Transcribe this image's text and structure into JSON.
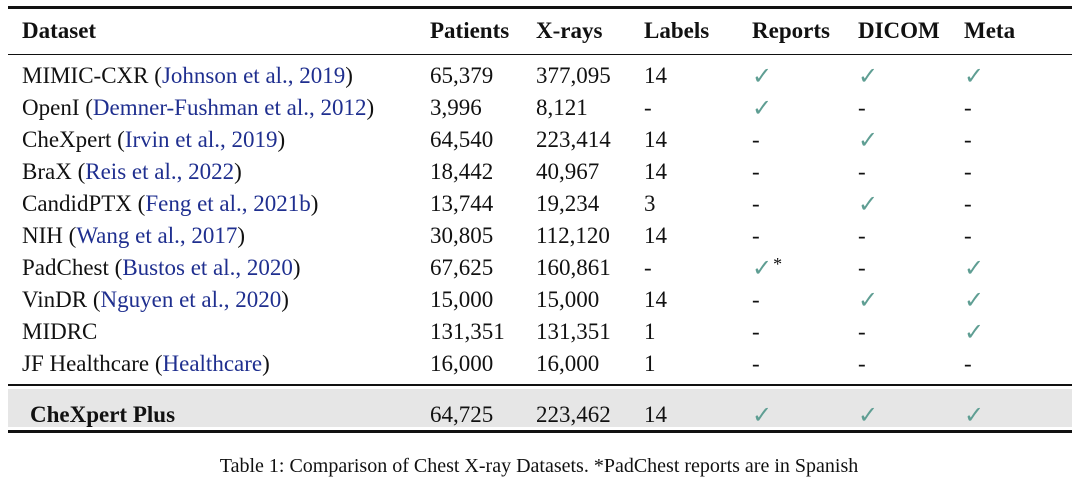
{
  "table": {
    "headers": [
      "Dataset",
      "Patients",
      "X-rays",
      "Labels",
      "Reports",
      "DICOM",
      "Meta"
    ],
    "rows": [
      {
        "name": "MIMIC-CXR",
        "cite": "Johnson et al., 2019",
        "patients": "65,379",
        "xrays": "377,095",
        "labels": "14",
        "reports": "✓",
        "reports_note": "",
        "dicom": "✓",
        "meta": "✓"
      },
      {
        "name": "OpenI",
        "cite": "Demner-Fushman et al., 2012",
        "patients": "3,996",
        "xrays": "8,121",
        "labels": "-",
        "reports": "✓",
        "reports_note": "",
        "dicom": "-",
        "meta": "-"
      },
      {
        "name": "CheXpert",
        "cite": "Irvin et al., 2019",
        "patients": "64,540",
        "xrays": "223,414",
        "labels": "14",
        "reports": "-",
        "reports_note": "",
        "dicom": "✓",
        "meta": "-"
      },
      {
        "name": "BraX",
        "cite": "Reis et al., 2022",
        "patients": "18,442",
        "xrays": "40,967",
        "labels": "14",
        "reports": "-",
        "reports_note": "",
        "dicom": "-",
        "meta": "-"
      },
      {
        "name": "CandidPTX",
        "cite": "Feng et al., 2021b",
        "patients": "13,744",
        "xrays": "19,234",
        "labels": "3",
        "reports": "-",
        "reports_note": "",
        "dicom": "✓",
        "meta": "-"
      },
      {
        "name": "NIH",
        "cite": "Wang et al., 2017",
        "patients": "30,805",
        "xrays": "112,120",
        "labels": "14",
        "reports": "-",
        "reports_note": "",
        "dicom": "-",
        "meta": "-"
      },
      {
        "name": "PadChest",
        "cite": "Bustos et al., 2020",
        "patients": "67,625",
        "xrays": "160,861",
        "labels": "-",
        "reports": "✓",
        "reports_note": "*",
        "dicom": "-",
        "meta": "✓"
      },
      {
        "name": "VinDR",
        "cite": "Nguyen et al., 2020",
        "patients": "15,000",
        "xrays": "15,000",
        "labels": "14",
        "reports": "-",
        "reports_note": "",
        "dicom": "✓",
        "meta": "✓"
      },
      {
        "name": "MIDRC",
        "cite": "",
        "patients": "131,351",
        "xrays": "131,351",
        "labels": "1",
        "reports": "-",
        "reports_note": "",
        "dicom": "-",
        "meta": "✓"
      },
      {
        "name": "JF Healthcare",
        "cite": "Healthcare",
        "patients": "16,000",
        "xrays": "16,000",
        "labels": "1",
        "reports": "-",
        "reports_note": "",
        "dicom": "-",
        "meta": "-"
      }
    ],
    "footer": {
      "name": "CheXpert Plus",
      "patients": "64,725",
      "xrays": "223,462",
      "labels": "14",
      "reports": "✓",
      "dicom": "✓",
      "meta": "✓"
    }
  },
  "caption": "Table 1: Comparison of Chest X-ray Datasets. *PadChest reports are in Spanish",
  "colors": {
    "check": "#5f9e93",
    "citation": "#1f2f8f",
    "highlight": "#e6e6e6"
  }
}
